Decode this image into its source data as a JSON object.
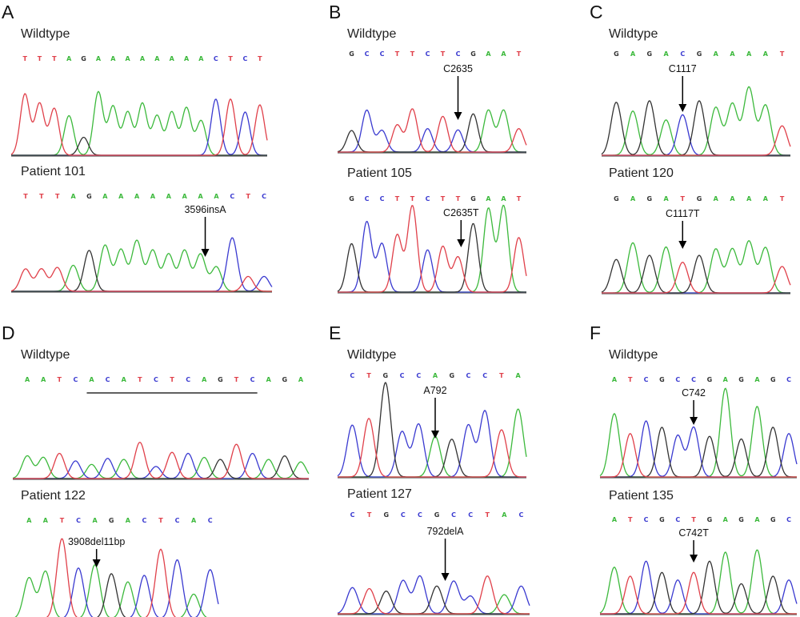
{
  "colors": {
    "A": "#3cb93c",
    "C": "#3a3ad0",
    "G": "#333333",
    "T": "#e0404a",
    "baseline": "#7a7a7a"
  },
  "panels": [
    {
      "letter": "A",
      "traces": [
        {
          "title": "Wildtype",
          "sequence": "TTTAGAAAAAAAACTCT",
          "peaks": [
            0.85,
            0.72,
            0.65,
            0.55,
            0.25,
            0.88,
            0.68,
            0.6,
            0.72,
            0.55,
            0.6,
            0.66,
            0.48,
            0.78,
            0.78,
            0.6,
            0.7
          ],
          "underline": null,
          "annotation": null
        },
        {
          "title": "Patient 101",
          "sequence": "TTTAGAAAAAAAACTC",
          "peaks": [
            0.3,
            0.3,
            0.32,
            0.35,
            0.55,
            0.62,
            0.56,
            0.68,
            0.55,
            0.5,
            0.55,
            0.5,
            0.33,
            0.72,
            0.2,
            0.2
          ],
          "underline": null,
          "annotation": {
            "text": "3596insA",
            "index": 11.3
          }
        }
      ]
    },
    {
      "letter": "B",
      "traces": [
        {
          "title": "Wildtype",
          "sequence": "GCCTTCTCGAAT",
          "peaks": [
            0.35,
            0.68,
            0.35,
            0.44,
            0.7,
            0.38,
            0.58,
            0.36,
            0.62,
            0.68,
            0.68,
            0.38
          ],
          "underline": null,
          "annotation": {
            "text": "C2635",
            "index": 7
          }
        },
        {
          "title": "Patient 105",
          "sequence": "GCCTTCTTGAAT",
          "peaks": [
            0.55,
            0.8,
            0.55,
            0.65,
            0.98,
            0.48,
            0.52,
            0.4,
            0.78,
            0.95,
            0.98,
            0.62
          ],
          "underline": null,
          "annotation": {
            "text": "C2635T",
            "index": 7.2
          }
        }
      ]
    },
    {
      "letter": "C",
      "traces": [
        {
          "title": "Wildtype",
          "sequence": "GAGACGAAAAT",
          "peaks": [
            0.72,
            0.6,
            0.74,
            0.48,
            0.55,
            0.74,
            0.65,
            0.7,
            0.92,
            0.68,
            0.4
          ],
          "underline": null,
          "annotation": {
            "text": "C1117",
            "index": 4
          }
        },
        {
          "title": "Patient 120",
          "sequence": "GAGATGAAAAT",
          "peaks": [
            0.48,
            0.72,
            0.54,
            0.66,
            0.44,
            0.54,
            0.63,
            0.63,
            0.74,
            0.65,
            0.38
          ],
          "underline": null,
          "annotation": {
            "text": "C1117T",
            "index": 4
          }
        }
      ]
    },
    {
      "letter": "D",
      "traces": [
        {
          "title": "Wildtype",
          "sequence": "AATCACATCTCAGTCAGA",
          "peaks": [
            0.45,
            0.42,
            0.5,
            0.35,
            0.28,
            0.4,
            0.38,
            0.72,
            0.24,
            0.52,
            0.5,
            0.42,
            0.38,
            0.68,
            0.5,
            0.38,
            0.45,
            0.33
          ],
          "underline": {
            "start": 4,
            "end": 14
          },
          "annotation": null
        },
        {
          "title": "Patient 122",
          "sequence": "AATCAGACTCAC",
          "peaks": [
            0.5,
            0.58,
            0.98,
            0.62,
            0.66,
            0.55,
            0.45,
            0.53,
            0.85,
            0.72,
            0.3,
            0.6
          ],
          "underline": null,
          "annotation": {
            "text": "3908del11bp",
            "index": 4.1
          }
        }
      ]
    },
    {
      "letter": "E",
      "traces": [
        {
          "title": "Wildtype",
          "sequence": "CTGCCAGCCTA",
          "peaks": [
            0.55,
            0.62,
            1.0,
            0.48,
            0.56,
            0.43,
            0.4,
            0.55,
            0.7,
            0.5,
            0.72
          ],
          "underline": null,
          "annotation": {
            "text": "A792",
            "index": 5
          }
        },
        {
          "title": "Patient 127",
          "sequence": "CTGCCGCCTAC",
          "peaks": [
            0.52,
            0.5,
            0.45,
            0.66,
            0.75,
            0.55,
            0.65,
            0.35,
            0.75,
            0.38,
            0.55
          ],
          "underline": null,
          "annotation": {
            "text": "792delA",
            "index": 5.5
          }
        }
      ]
    },
    {
      "letter": "F",
      "traces": [
        {
          "title": "Wildtype",
          "sequence": "ATCGCCGAGAGC",
          "peaks": [
            0.7,
            0.48,
            0.62,
            0.55,
            0.46,
            0.55,
            0.45,
            0.98,
            0.42,
            0.78,
            0.55,
            0.48
          ],
          "underline": null,
          "annotation": {
            "text": "C742",
            "index": 5
          }
        },
        {
          "title": "Patient 135",
          "sequence": "ATCGCTGAGAGC",
          "peaks": [
            0.62,
            0.5,
            0.7,
            0.55,
            0.45,
            0.55,
            0.7,
            0.82,
            0.4,
            0.85,
            0.5,
            0.45
          ],
          "underline": null,
          "annotation": {
            "text": "C742T",
            "index": 5
          }
        }
      ]
    }
  ]
}
